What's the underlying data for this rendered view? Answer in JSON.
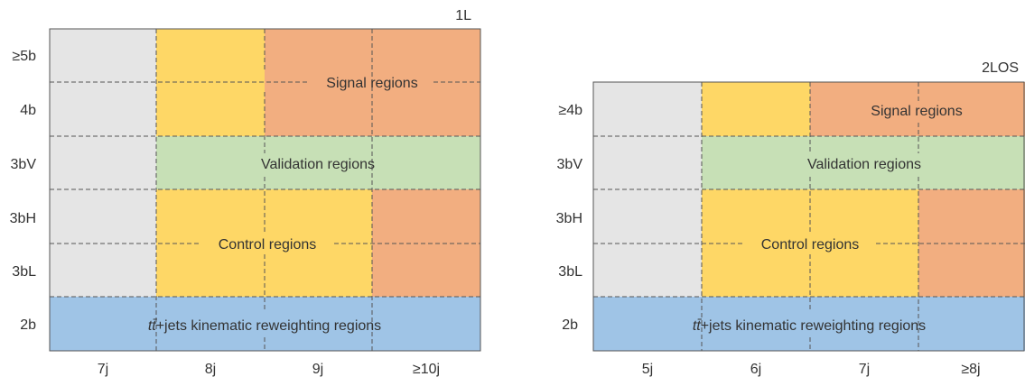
{
  "colors": {
    "gray": "#e5e5e5",
    "yellow": "#fed766",
    "orange": "#f2ae80",
    "green": "#c7e0b6",
    "blue": "#9fc4e6",
    "border": "#555555",
    "dash": "#555555",
    "text": "#333333"
  },
  "panels": [
    {
      "channel": "1L",
      "rows": [
        "≥5b",
        "4b",
        "3bV",
        "3bH",
        "3bL",
        "2b"
      ],
      "cols": [
        "7j",
        "8j",
        "9j",
        "≥10j"
      ],
      "region_labels": {
        "signal": "Signal regions",
        "validation": "Validation regions",
        "control": "Control regions",
        "reweighting_prefix": "tt̄",
        "reweighting_suffix": "+jets kinematic reweighting regions"
      }
    },
    {
      "channel": "2LOS",
      "rows": [
        "≥4b",
        "3bV",
        "3bH",
        "3bL",
        "2b"
      ],
      "cols": [
        "5j",
        "6j",
        "7j",
        "≥8j"
      ],
      "region_labels": {
        "signal": "Signal regions",
        "validation": "Validation regions",
        "control": "Control regions",
        "reweighting_prefix": "tt̄",
        "reweighting_suffix": "+jets kinematic reweighting regions"
      }
    }
  ]
}
